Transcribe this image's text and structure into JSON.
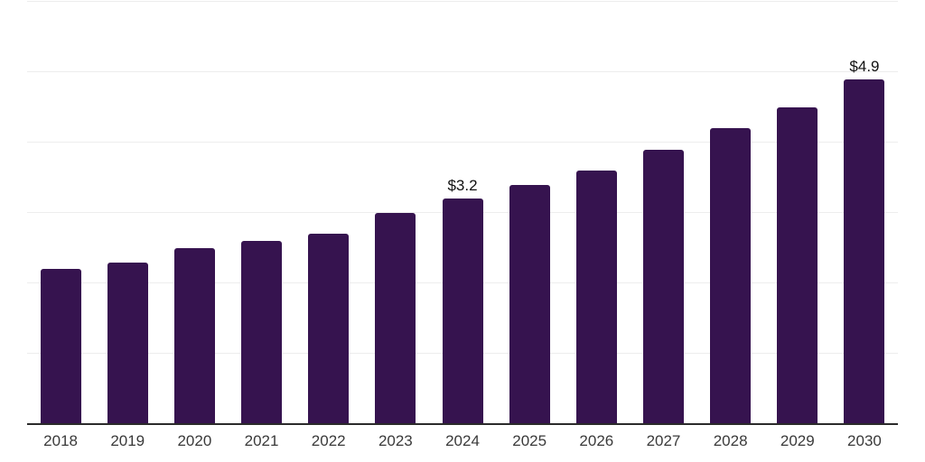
{
  "chart_data": {
    "type": "bar",
    "title": "",
    "xlabel": "",
    "ylabel": "",
    "categories": [
      "2018",
      "2019",
      "2020",
      "2021",
      "2022",
      "2023",
      "2024",
      "2025",
      "2026",
      "2027",
      "2028",
      "2029",
      "2030"
    ],
    "values": [
      2.2,
      2.3,
      2.5,
      2.6,
      2.7,
      3.0,
      3.2,
      3.4,
      3.6,
      3.9,
      4.2,
      4.5,
      4.9
    ],
    "point_labels": [
      "",
      "",
      "",
      "",
      "",
      "",
      "$3.2",
      "",
      "",
      "",
      "",
      "",
      "$4.9"
    ],
    "ylim": [
      0,
      6
    ],
    "gridline_values": [
      1,
      2,
      3,
      4,
      5,
      6
    ],
    "grid": true,
    "legend": "none",
    "colors": {
      "bar": "#36134f",
      "axis_line": "#2b2b2b",
      "gridline": "#ededed",
      "tick_label": "#3a3a3a",
      "data_label": "#111111",
      "background": "#ffffff"
    }
  }
}
